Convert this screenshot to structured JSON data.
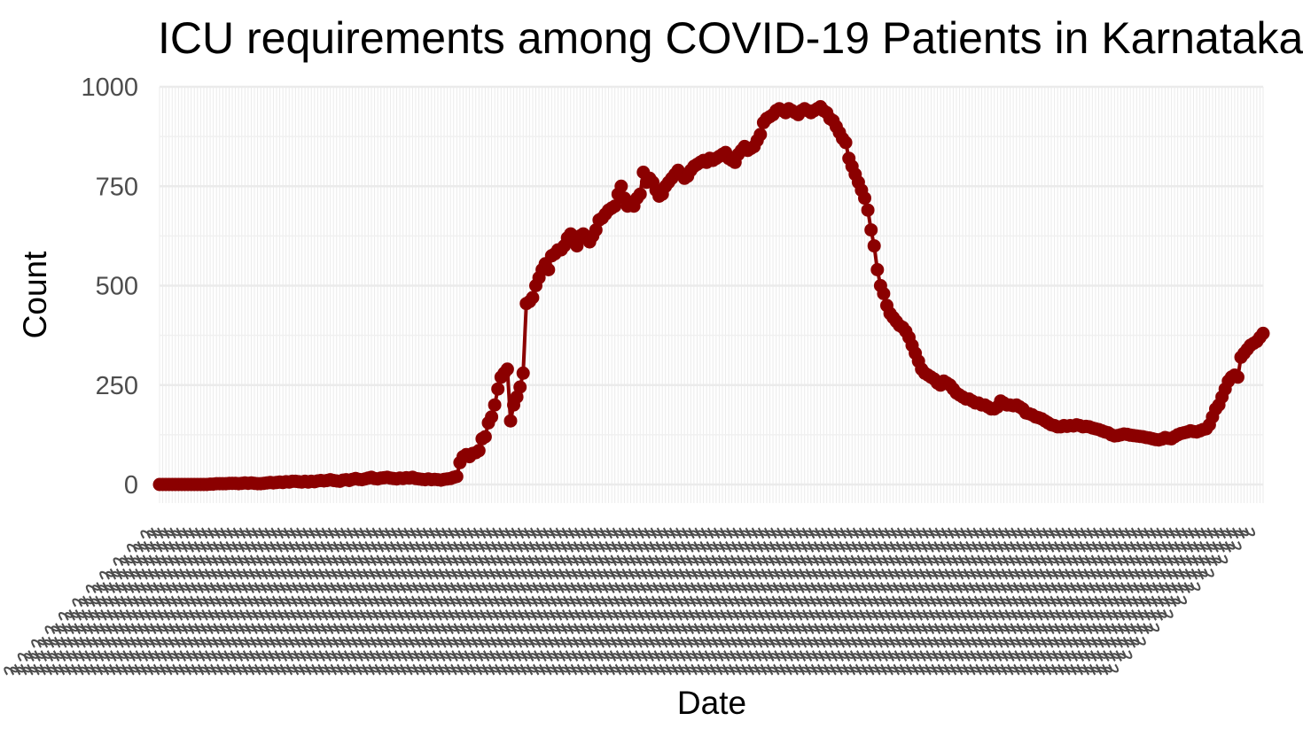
{
  "chart_data": {
    "type": "line",
    "title": "ICU requirements among COVID-19 Patients in Karnataka",
    "xlabel": "Date",
    "ylabel": "Count",
    "ylim": [
      0,
      1000
    ],
    "yticks": [
      0,
      250,
      500,
      750,
      1000
    ],
    "grid": true,
    "legend": "none",
    "x_tick_labels_note": "one rotated date label per day; labels overlap and are illegible in the image",
    "color": "#8b0000",
    "series": [
      {
        "values": [
          0,
          0,
          0,
          0,
          0,
          0,
          0,
          0,
          0,
          0,
          0,
          0,
          0,
          0,
          0,
          0,
          1,
          1,
          2,
          2,
          2,
          2,
          3,
          3,
          3,
          2,
          3,
          4,
          3,
          4,
          3,
          2,
          2,
          3,
          4,
          5,
          4,
          5,
          6,
          5,
          7,
          6,
          8,
          8,
          7,
          6,
          8,
          6,
          8,
          7,
          9,
          10,
          9,
          10,
          12,
          10,
          9,
          8,
          11,
          12,
          10,
          13,
          15,
          13,
          12,
          14,
          16,
          18,
          15,
          14,
          16,
          17,
          18,
          16,
          15,
          14,
          16,
          15,
          17,
          16,
          18,
          15,
          14,
          13,
          12,
          14,
          12,
          13,
          12,
          11,
          13,
          14,
          15,
          18,
          20,
          55,
          70,
          75,
          70,
          78,
          80,
          85,
          115,
          120,
          155,
          170,
          200,
          240,
          270,
          280,
          290,
          160,
          200,
          220,
          245,
          280,
          455,
          460,
          470,
          500,
          520,
          540,
          555,
          540,
          575,
          580,
          590,
          590,
          600,
          620,
          630,
          610,
          600,
          625,
          630,
          620,
          610,
          625,
          640,
          665,
          670,
          680,
          690,
          695,
          700,
          730,
          750,
          720,
          700,
          710,
          700,
          720,
          730,
          785,
          760,
          770,
          760,
          740,
          725,
          730,
          750,
          760,
          770,
          780,
          790,
          780,
          770,
          775,
          790,
          800,
          805,
          810,
          815,
          810,
          820,
          815,
          820,
          825,
          830,
          835,
          820,
          815,
          810,
          830,
          840,
          850,
          840,
          845,
          850,
          865,
          880,
          910,
          920,
          925,
          930,
          940,
          945,
          940,
          935,
          945,
          940,
          935,
          930,
          940,
          945,
          940,
          935,
          940,
          945,
          950,
          940,
          935,
          920,
          915,
          900,
          885,
          870,
          860,
          820,
          800,
          780,
          760,
          740,
          720,
          690,
          640,
          600,
          540,
          500,
          480,
          450,
          430,
          420,
          410,
          400,
          395,
          385,
          370,
          350,
          330,
          310,
          290,
          280,
          275,
          270,
          265,
          255,
          250,
          260,
          255,
          250,
          240,
          230,
          225,
          220,
          215,
          215,
          210,
          205,
          205,
          200,
          200,
          195,
          190,
          190,
          195,
          210,
          205,
          200,
          200,
          198,
          200,
          195,
          190,
          180,
          178,
          175,
          170,
          168,
          165,
          160,
          155,
          150,
          148,
          145,
          145,
          148,
          146,
          148,
          147,
          150,
          148,
          145,
          146,
          145,
          142,
          140,
          138,
          135,
          132,
          130,
          125,
          122,
          123,
          125,
          127,
          126,
          124,
          123,
          122,
          121,
          120,
          118,
          117,
          115,
          113,
          112,
          114,
          118,
          116,
          115,
          120,
          125,
          128,
          130,
          132,
          135,
          133,
          132,
          135,
          138,
          140,
          150,
          170,
          190,
          200,
          220,
          240,
          260,
          270,
          275,
          270,
          320,
          330,
          340,
          350,
          355,
          360,
          370,
          380
        ]
      }
    ]
  }
}
